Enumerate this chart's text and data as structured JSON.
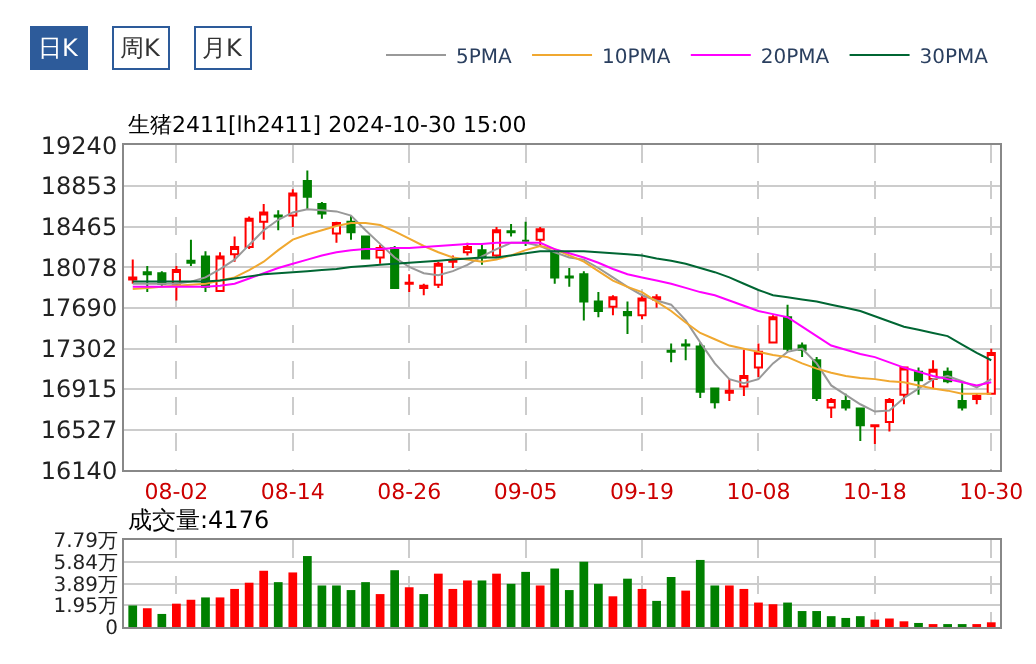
{
  "chart_data": [
    {
      "type": "candlestick",
      "title": "生猪2411[lh2411] 2024-10-30 15:00",
      "annotations": [
        "日K",
        "周K",
        "月K"
      ],
      "categories": [
        null,
        null,
        null,
        "08-02",
        null,
        null,
        null,
        null,
        null,
        null,
        null,
        "08-14",
        null,
        null,
        null,
        null,
        null,
        null,
        null,
        "08-26",
        null,
        null,
        null,
        null,
        null,
        null,
        null,
        "09-05",
        null,
        null,
        null,
        null,
        null,
        null,
        null,
        "09-19",
        null,
        null,
        null,
        null,
        null,
        null,
        null,
        "10-08",
        null,
        null,
        null,
        null,
        null,
        null,
        null,
        "10-18",
        null,
        null,
        null,
        null,
        null,
        null,
        null,
        "10-30"
      ],
      "ohlc": [
        [
          17960,
          18150,
          17920,
          17980
        ],
        [
          18030,
          18090,
          17840,
          18010
        ],
        [
          18020,
          18040,
          17900,
          17920
        ],
        [
          17920,
          18090,
          17760,
          18050
        ],
        [
          18140,
          18340,
          18090,
          18120
        ],
        [
          18180,
          18230,
          17840,
          17890
        ],
        [
          17850,
          18220,
          17840,
          18180
        ],
        [
          18200,
          18370,
          18130,
          18270
        ],
        [
          18270,
          18560,
          18250,
          18540
        ],
        [
          18510,
          18680,
          18340,
          18600
        ],
        [
          18570,
          18620,
          18430,
          18560
        ],
        [
          18570,
          18820,
          18460,
          18780
        ],
        [
          18900,
          19000,
          18630,
          18750
        ],
        [
          18680,
          18700,
          18540,
          18590
        ],
        [
          18400,
          18510,
          18310,
          18500
        ],
        [
          18510,
          18570,
          18340,
          18410
        ],
        [
          18370,
          18380,
          18150,
          18160
        ],
        [
          18170,
          18290,
          18110,
          18260
        ],
        [
          18260,
          18280,
          17870,
          17880
        ],
        [
          17920,
          18010,
          17840,
          17930
        ],
        [
          17880,
          17920,
          17810,
          17900
        ],
        [
          17910,
          18130,
          17880,
          18110
        ],
        [
          18130,
          18190,
          18070,
          18140
        ],
        [
          18220,
          18310,
          18190,
          18270
        ],
        [
          18240,
          18290,
          18100,
          18170
        ],
        [
          18190,
          18460,
          18170,
          18430
        ],
        [
          18420,
          18490,
          18370,
          18410
        ],
        [
          18330,
          18510,
          18280,
          18330
        ],
        [
          18340,
          18460,
          18280,
          18440
        ],
        [
          18220,
          18250,
          17920,
          17980
        ],
        [
          17990,
          18070,
          17890,
          17980
        ],
        [
          18010,
          18040,
          17570,
          17750
        ],
        [
          17750,
          17840,
          17600,
          17660
        ],
        [
          17700,
          17810,
          17620,
          17790
        ],
        [
          17650,
          17750,
          17440,
          17620
        ],
        [
          17620,
          17820,
          17580,
          17780
        ],
        [
          17770,
          17820,
          17690,
          17790
        ],
        [
          17280,
          17350,
          17170,
          17270
        ],
        [
          17340,
          17390,
          17190,
          17330
        ],
        [
          17320,
          17360,
          16830,
          16890
        ],
        [
          16920,
          16930,
          16730,
          16790
        ],
        [
          16880,
          17010,
          16800,
          16900
        ],
        [
          16940,
          17290,
          16850,
          17040
        ],
        [
          17120,
          17350,
          17030,
          17270
        ],
        [
          17360,
          17620,
          17350,
          17600
        ],
        [
          17600,
          17720,
          17270,
          17300
        ],
        [
          17330,
          17360,
          17220,
          17290
        ],
        [
          17190,
          17220,
          16800,
          16830
        ],
        [
          16740,
          16830,
          16640,
          16810
        ],
        [
          16800,
          16870,
          16710,
          16740
        ],
        [
          16730,
          16740,
          16420,
          16570
        ],
        [
          16560,
          16580,
          16390,
          16570
        ],
        [
          16600,
          16830,
          16510,
          16810
        ],
        [
          16860,
          17130,
          16770,
          17120
        ],
        [
          17080,
          17120,
          16860,
          17000
        ],
        [
          17010,
          17190,
          16920,
          17100
        ],
        [
          17080,
          17120,
          16970,
          16990
        ],
        [
          16800,
          16970,
          16710,
          16740
        ],
        [
          16820,
          16870,
          16770,
          16850
        ],
        [
          16870,
          17300,
          16860,
          17260
        ]
      ],
      "colors": [
        "#ff0000",
        "#008000",
        "#008000",
        "#ff0000",
        "#008000",
        "#008000",
        "#ff0000",
        "#ff0000",
        "#ff0000",
        "#ff0000",
        "#008000",
        "#ff0000",
        "#008000",
        "#008000",
        "#ff0000",
        "#008000",
        "#008000",
        "#ff0000",
        "#008000",
        "#ff0000",
        "#ff0000",
        "#ff0000",
        "#ff0000",
        "#ff0000",
        "#008000",
        "#ff0000",
        "#008000",
        "#008000",
        "#ff0000",
        "#008000",
        "#008000",
        "#008000",
        "#008000",
        "#ff0000",
        "#008000",
        "#ff0000",
        "#ff0000",
        "#008000",
        "#008000",
        "#008000",
        "#008000",
        "#ff0000",
        "#ff0000",
        "#ff0000",
        "#ff0000",
        "#008000",
        "#008000",
        "#008000",
        "#ff0000",
        "#008000",
        "#008000",
        "#ff0000",
        "#ff0000",
        "#ff0000",
        "#008000",
        "#ff0000",
        "#008000",
        "#008000",
        "#ff0000",
        "#ff0000"
      ],
      "series": [
        {
          "name": "5PMA",
          "type": "line",
          "color": "#999999",
          "values": [
            17920,
            17920,
            17920,
            17920,
            17940,
            17980,
            18060,
            18150,
            18290,
            18430,
            18530,
            18600,
            18630,
            18620,
            18610,
            18570,
            18430,
            18300,
            18170,
            18080,
            18020,
            18000,
            18040,
            18100,
            18180,
            18250,
            18310,
            18310,
            18280,
            18220,
            18170,
            18150,
            18070,
            17980,
            17890,
            17810,
            17760,
            17720,
            17570,
            17360,
            17160,
            17010,
            16970,
            17010,
            17160,
            17270,
            17300,
            17160,
            16950,
            16860,
            16770,
            16700,
            16710,
            16830,
            16920,
            17010,
            17040,
            16990,
            16930,
            17010
          ]
        },
        {
          "name": "10PMA",
          "type": "line",
          "color": "#f0a830",
          "values": [
            17870,
            17880,
            17890,
            17900,
            17910,
            17920,
            17950,
            17980,
            18050,
            18130,
            18240,
            18340,
            18390,
            18430,
            18470,
            18500,
            18500,
            18480,
            18420,
            18350,
            18280,
            18220,
            18170,
            18150,
            18130,
            18150,
            18190,
            18240,
            18280,
            18250,
            18190,
            18130,
            18040,
            17950,
            17890,
            17840,
            17750,
            17660,
            17550,
            17450,
            17390,
            17330,
            17300,
            17270,
            17240,
            17220,
            17160,
            17110,
            17070,
            17040,
            17020,
            17010,
            16990,
            16980,
            16950,
            16920,
            16900,
            16870,
            16870,
            16870
          ]
        },
        {
          "name": "20PMA",
          "type": "line",
          "color": "#ff00ff",
          "values": [
            17890,
            17890,
            17890,
            17890,
            17890,
            17890,
            17900,
            17920,
            17970,
            18020,
            18070,
            18110,
            18150,
            18190,
            18220,
            18240,
            18250,
            18250,
            18260,
            18260,
            18270,
            18280,
            18290,
            18300,
            18300,
            18310,
            18310,
            18310,
            18310,
            18250,
            18210,
            18170,
            18120,
            18060,
            18010,
            17980,
            17950,
            17920,
            17880,
            17840,
            17810,
            17760,
            17710,
            17660,
            17630,
            17600,
            17510,
            17420,
            17330,
            17290,
            17250,
            17220,
            17170,
            17120,
            17080,
            17040,
            17010,
            16980,
            16950,
            16980
          ]
        },
        {
          "name": "30PMA",
          "type": "line",
          "color": "#006633",
          "values": [
            17940,
            17940,
            17940,
            17940,
            17940,
            17940,
            17950,
            17970,
            17990,
            18010,
            18020,
            18030,
            18040,
            18050,
            18060,
            18080,
            18090,
            18100,
            18110,
            18120,
            18130,
            18140,
            18150,
            18160,
            18170,
            18170,
            18190,
            18210,
            18230,
            18230,
            18230,
            18230,
            18220,
            18210,
            18200,
            18190,
            18160,
            18140,
            18110,
            18070,
            18030,
            17980,
            17920,
            17860,
            17810,
            17790,
            17770,
            17750,
            17720,
            17690,
            17660,
            17610,
            17560,
            17510,
            17480,
            17450,
            17420,
            17340,
            17260,
            17190
          ]
        }
      ],
      "ylim": [
        16140,
        19240
      ],
      "yticks": [
        16140,
        16527,
        16915,
        17302,
        17690,
        18078,
        18465,
        18853,
        19240
      ],
      "grid": true,
      "legend": "top right"
    },
    {
      "type": "bar",
      "title": "成交量:4176",
      "categories": [
        null,
        null,
        null,
        null,
        null,
        null,
        null,
        null,
        null,
        null,
        null,
        null,
        null,
        null,
        null,
        null,
        null,
        null,
        null,
        null,
        null,
        null,
        null,
        null,
        null,
        null,
        null,
        null,
        null,
        null,
        null,
        null,
        null,
        null,
        null,
        null,
        null,
        null,
        null,
        null,
        null,
        null,
        null,
        null,
        null,
        null,
        null,
        null,
        null,
        null,
        null,
        null,
        null,
        null,
        null,
        null,
        null,
        null,
        null,
        null
      ],
      "values": [
        1.93,
        1.68,
        1.17,
        2.09,
        2.44,
        2.65,
        2.65,
        3.41,
        3.97,
        5.04,
        4.02,
        4.89,
        6.36,
        3.72,
        3.72,
        3.31,
        4.02,
        2.95,
        5.09,
        3.56,
        2.95,
        4.78,
        3.41,
        4.17,
        4.17,
        4.78,
        3.87,
        4.94,
        3.72,
        5.24,
        3.31,
        5.85,
        3.87,
        2.75,
        4.33,
        3.41,
        2.34,
        4.48,
        3.26,
        6.01,
        3.72,
        3.72,
        3.41,
        2.19,
        2.04,
        2.19,
        1.43,
        1.43,
        0.97,
        0.81,
        0.97,
        0.66,
        0.76,
        0.51,
        0.36,
        0.2,
        0.2,
        0.2,
        0.1,
        0.42
      ],
      "colors": [
        "#008000",
        "#ff0000",
        "#008000",
        "#ff0000",
        "#ff0000",
        "#008000",
        "#ff0000",
        "#ff0000",
        "#ff0000",
        "#ff0000",
        "#008000",
        "#ff0000",
        "#008000",
        "#008000",
        "#008000",
        "#008000",
        "#008000",
        "#ff0000",
        "#008000",
        "#ff0000",
        "#008000",
        "#ff0000",
        "#ff0000",
        "#ff0000",
        "#008000",
        "#ff0000",
        "#008000",
        "#008000",
        "#ff0000",
        "#008000",
        "#008000",
        "#008000",
        "#008000",
        "#ff0000",
        "#008000",
        "#ff0000",
        "#008000",
        "#008000",
        "#ff0000",
        "#008000",
        "#008000",
        "#ff0000",
        "#ff0000",
        "#ff0000",
        "#ff0000",
        "#008000",
        "#008000",
        "#008000",
        "#008000",
        "#008000",
        "#008000",
        "#ff0000",
        "#ff0000",
        "#ff0000",
        "#008000",
        "#ff0000",
        "#008000",
        "#008000",
        "#ff0000",
        "#ff0000"
      ],
      "ylim": [
        0,
        7.79
      ],
      "yticks": [
        0,
        {
          "value": 1.95,
          "label": "1.95万"
        },
        {
          "value": 3.89,
          "label": "3.89万"
        },
        {
          "value": 5.84,
          "label": "5.84万"
        },
        {
          "value": 7.79,
          "label": "7.79万"
        }
      ],
      "tick_labels": "y",
      "grid": true
    }
  ]
}
